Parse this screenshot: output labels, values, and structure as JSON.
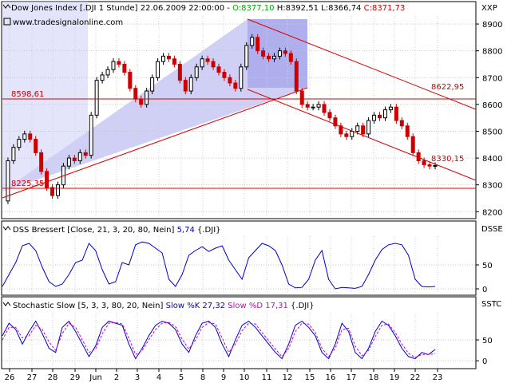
{
  "header": {
    "symbol_text": "Dow Jones Index [.DJI  1 Stunde] 22.06.2009 22:00:00 - ",
    "open": "O:8377,10",
    "high": "H:8392,51",
    "low": "L:8366,74",
    "close": "C:8371,73",
    "website": "www.tradesignalonline.com",
    "colors": {
      "open": "#00aa00",
      "close": "#cc0000",
      "text": "#000000"
    }
  },
  "panels": {
    "price_label": "XXP",
    "dss_label": "DSSE",
    "stoch_label": "SSTC",
    "dss_title": "DSS Bressert [Close, 21, 3, 20, 80, Nein] ",
    "dss_value": "5,74",
    "dss_suffix": " {.DJI}",
    "stoch_title": "Stochastic Slow [5, 3, 3, 80, 20, Nein] ",
    "stoch_k": "Slow %K 27,32",
    "stoch_d": "Slow %D 17,31",
    "stoch_suffix": " {.DJI}"
  },
  "annotations": {
    "level_1": "8598,61",
    "level_2": "8225,35",
    "level_3": "8622,95",
    "level_4": "8330,15"
  },
  "chart_data": [
    {
      "type": "candlestick",
      "title": "Dow Jones Index [.DJI  1 Stunde]",
      "ylim": [
        8180,
        8930
      ],
      "yticks": [
        8200,
        8300,
        8400,
        8500,
        8600,
        8700,
        8800,
        8900
      ],
      "ytick_labels": [
        "8200",
        "8300",
        "8400",
        "8500",
        "8600",
        "8700",
        "8800",
        "8900"
      ],
      "x_labels": [
        "26",
        "27",
        "28",
        "29",
        "Jun",
        "2",
        "3",
        "4",
        "5",
        "8",
        "9",
        "10",
        "11",
        "12",
        "15",
        "16",
        "17",
        "18",
        "19",
        "22",
        "23"
      ],
      "close_path": [
        [
          0,
          8240
        ],
        [
          1,
          8390
        ],
        [
          2,
          8440
        ],
        [
          3,
          8470
        ],
        [
          4,
          8490
        ],
        [
          5,
          8470
        ],
        [
          6,
          8420
        ],
        [
          7,
          8350
        ],
        [
          8,
          8290
        ],
        [
          9,
          8260
        ],
        [
          10,
          8300
        ],
        [
          11,
          8370
        ],
        [
          12,
          8400
        ],
        [
          13,
          8390
        ],
        [
          14,
          8420
        ],
        [
          15,
          8410
        ],
        [
          16,
          8560
        ],
        [
          17,
          8690
        ],
        [
          18,
          8710
        ],
        [
          19,
          8730
        ],
        [
          20,
          8760
        ],
        [
          21,
          8750
        ],
        [
          22,
          8720
        ],
        [
          23,
          8660
        ],
        [
          24,
          8620
        ],
        [
          25,
          8600
        ],
        [
          26,
          8650
        ],
        [
          27,
          8700
        ],
        [
          28,
          8760
        ],
        [
          29,
          8780
        ],
        [
          30,
          8770
        ],
        [
          31,
          8750
        ],
        [
          32,
          8690
        ],
        [
          33,
          8650
        ],
        [
          34,
          8700
        ],
        [
          35,
          8740
        ],
        [
          36,
          8770
        ],
        [
          37,
          8760
        ],
        [
          38,
          8740
        ],
        [
          39,
          8720
        ],
        [
          40,
          8700
        ],
        [
          41,
          8680
        ],
        [
          42,
          8660
        ],
        [
          43,
          8740
        ],
        [
          44,
          8820
        ],
        [
          45,
          8850
        ],
        [
          46,
          8800
        ],
        [
          47,
          8780
        ],
        [
          48,
          8770
        ],
        [
          49,
          8780
        ],
        [
          50,
          8800
        ],
        [
          51,
          8790
        ],
        [
          52,
          8760
        ],
        [
          53,
          8650
        ],
        [
          54,
          8600
        ],
        [
          55,
          8590
        ],
        [
          56,
          8590
        ],
        [
          57,
          8600
        ],
        [
          58,
          8570
        ],
        [
          59,
          8550
        ],
        [
          60,
          8520
        ],
        [
          61,
          8490
        ],
        [
          62,
          8480
        ],
        [
          63,
          8500
        ],
        [
          64,
          8520
        ],
        [
          65,
          8490
        ],
        [
          66,
          8540
        ],
        [
          67,
          8560
        ],
        [
          68,
          8550
        ],
        [
          69,
          8580
        ],
        [
          70,
          8590
        ],
        [
          71,
          8540
        ],
        [
          72,
          8520
        ],
        [
          73,
          8480
        ],
        [
          74,
          8420
        ],
        [
          75,
          8390
        ],
        [
          76,
          8375
        ],
        [
          77,
          8370
        ],
        [
          78,
          8372
        ]
      ],
      "annotation_levels": [
        {
          "label": "8598,61",
          "value": 8598.61
        },
        {
          "label": "8225,35",
          "value": 8225.35
        }
      ],
      "channel_labels": [
        {
          "label": "8622,95",
          "value": 8622.95
        },
        {
          "label": "8330,15",
          "value": 8330.15
        }
      ],
      "colors": {
        "up": "#000000",
        "down": "#cc0000",
        "channel": "#dd0000",
        "shade": "#9999ee"
      }
    },
    {
      "type": "line",
      "title": "DSS Bressert [Close, 21, 3, 20, 80, Nein] 5,74 {.DJI}",
      "ylim": [
        -10,
        110
      ],
      "yticks": [
        0,
        50
      ],
      "ytick_labels": [
        "0",
        "50"
      ],
      "series": [
        {
          "name": "DSS Bressert",
          "color": "#0000cc",
          "values": [
            [
              0,
              5
            ],
            [
              6,
              30
            ],
            [
              12,
              55
            ],
            [
              18,
              90
            ],
            [
              24,
              95
            ],
            [
              30,
              80
            ],
            [
              36,
              45
            ],
            [
              42,
              15
            ],
            [
              48,
              5
            ],
            [
              54,
              10
            ],
            [
              60,
              30
            ],
            [
              66,
              55
            ],
            [
              72,
              60
            ],
            [
              78,
              95
            ],
            [
              84,
              80
            ],
            [
              90,
              40
            ],
            [
              96,
              10
            ],
            [
              102,
              15
            ],
            [
              108,
              55
            ],
            [
              114,
              50
            ],
            [
              120,
              92
            ],
            [
              126,
              98
            ],
            [
              132,
              95
            ],
            [
              138,
              85
            ],
            [
              144,
              75
            ],
            [
              150,
              20
            ],
            [
              156,
              5
            ],
            [
              162,
              30
            ],
            [
              168,
              70
            ],
            [
              174,
              80
            ],
            [
              180,
              88
            ],
            [
              186,
              78
            ],
            [
              192,
              85
            ],
            [
              198,
              90
            ],
            [
              204,
              60
            ],
            [
              210,
              40
            ],
            [
              216,
              20
            ],
            [
              222,
              65
            ],
            [
              228,
              80
            ],
            [
              234,
              95
            ],
            [
              240,
              90
            ],
            [
              246,
              80
            ],
            [
              252,
              50
            ],
            [
              258,
              10
            ],
            [
              264,
              2
            ],
            [
              270,
              3
            ],
            [
              276,
              20
            ],
            [
              282,
              60
            ],
            [
              288,
              80
            ],
            [
              294,
              20
            ],
            [
              300,
              0
            ],
            [
              306,
              3
            ],
            [
              312,
              2
            ],
            [
              318,
              1
            ],
            [
              324,
              5
            ],
            [
              330,
              30
            ],
            [
              336,
              60
            ],
            [
              342,
              82
            ],
            [
              348,
              92
            ],
            [
              354,
              95
            ],
            [
              360,
              92
            ],
            [
              366,
              70
            ],
            [
              372,
              20
            ],
            [
              378,
              5
            ],
            [
              384,
              4
            ],
            [
              390,
              5
            ]
          ]
        }
      ]
    },
    {
      "type": "line",
      "title": "Stochastic Slow [5, 3, 3, 80, 20, Nein] Slow %K 27,32 Slow %D 17,31 {.DJI}",
      "ylim": [
        -15,
        115
      ],
      "yticks": [
        0,
        50
      ],
      "ytick_labels": [
        "0",
        "50"
      ],
      "series": [
        {
          "name": "Slow %K",
          "color": "#0000cc",
          "values": [
            [
              0,
              60
            ],
            [
              5,
              90
            ],
            [
              10,
              75
            ],
            [
              15,
              40
            ],
            [
              20,
              70
            ],
            [
              25,
              95
            ],
            [
              30,
              65
            ],
            [
              35,
              30
            ],
            [
              40,
              20
            ],
            [
              45,
              80
            ],
            [
              50,
              95
            ],
            [
              55,
              70
            ],
            [
              60,
              40
            ],
            [
              65,
              10
            ],
            [
              70,
              35
            ],
            [
              75,
              80
            ],
            [
              80,
              95
            ],
            [
              85,
              90
            ],
            [
              90,
              85
            ],
            [
              95,
              40
            ],
            [
              100,
              5
            ],
            [
              105,
              30
            ],
            [
              110,
              60
            ],
            [
              115,
              85
            ],
            [
              120,
              95
            ],
            [
              125,
              90
            ],
            [
              130,
              75
            ],
            [
              135,
              40
            ],
            [
              140,
              20
            ],
            [
              145,
              60
            ],
            [
              150,
              90
            ],
            [
              155,
              95
            ],
            [
              160,
              80
            ],
            [
              165,
              40
            ],
            [
              170,
              10
            ],
            [
              175,
              50
            ],
            [
              180,
              85
            ],
            [
              185,
              95
            ],
            [
              190,
              80
            ],
            [
              195,
              60
            ],
            [
              200,
              40
            ],
            [
              205,
              20
            ],
            [
              210,
              5
            ],
            [
              215,
              40
            ],
            [
              220,
              85
            ],
            [
              225,
              95
            ],
            [
              230,
              80
            ],
            [
              235,
              60
            ],
            [
              240,
              20
            ],
            [
              245,
              5
            ],
            [
              250,
              40
            ],
            [
              255,
              90
            ],
            [
              260,
              70
            ],
            [
              265,
              20
            ],
            [
              270,
              5
            ],
            [
              275,
              30
            ],
            [
              280,
              70
            ],
            [
              285,
              95
            ],
            [
              290,
              85
            ],
            [
              295,
              60
            ],
            [
              300,
              30
            ],
            [
              305,
              10
            ],
            [
              310,
              5
            ],
            [
              315,
              20
            ],
            [
              320,
              15
            ],
            [
              325,
              27
            ]
          ]
        },
        {
          "name": "Slow %D",
          "color": "#cc00cc",
          "values": [
            [
              0,
              50
            ],
            [
              5,
              80
            ],
            [
              10,
              80
            ],
            [
              15,
              55
            ],
            [
              20,
              60
            ],
            [
              25,
              85
            ],
            [
              30,
              75
            ],
            [
              35,
              45
            ],
            [
              40,
              25
            ],
            [
              45,
              65
            ],
            [
              50,
              90
            ],
            [
              55,
              80
            ],
            [
              60,
              50
            ],
            [
              65,
              20
            ],
            [
              70,
              28
            ],
            [
              75,
              65
            ],
            [
              80,
              90
            ],
            [
              85,
              92
            ],
            [
              90,
              88
            ],
            [
              95,
              55
            ],
            [
              100,
              15
            ],
            [
              105,
              25
            ],
            [
              110,
              50
            ],
            [
              115,
              75
            ],
            [
              120,
              90
            ],
            [
              125,
              92
            ],
            [
              130,
              82
            ],
            [
              135,
              52
            ],
            [
              140,
              28
            ],
            [
              145,
              50
            ],
            [
              150,
              80
            ],
            [
              155,
              92
            ],
            [
              160,
              88
            ],
            [
              165,
              55
            ],
            [
              170,
              20
            ],
            [
              175,
              40
            ],
            [
              180,
              72
            ],
            [
              185,
              90
            ],
            [
              190,
              88
            ],
            [
              195,
              68
            ],
            [
              200,
              48
            ],
            [
              205,
              28
            ],
            [
              210,
              10
            ],
            [
              215,
              30
            ],
            [
              220,
              70
            ],
            [
              225,
              90
            ],
            [
              230,
              88
            ],
            [
              235,
              68
            ],
            [
              240,
              30
            ],
            [
              245,
              10
            ],
            [
              250,
              30
            ],
            [
              255,
              75
            ],
            [
              260,
              78
            ],
            [
              265,
              35
            ],
            [
              270,
              12
            ],
            [
              275,
              25
            ],
            [
              280,
              58
            ],
            [
              285,
              85
            ],
            [
              290,
              88
            ],
            [
              295,
              68
            ],
            [
              300,
              40
            ],
            [
              305,
              18
            ],
            [
              310,
              8
            ],
            [
              315,
              15
            ],
            [
              320,
              15
            ],
            [
              325,
              17
            ]
          ]
        }
      ]
    }
  ]
}
